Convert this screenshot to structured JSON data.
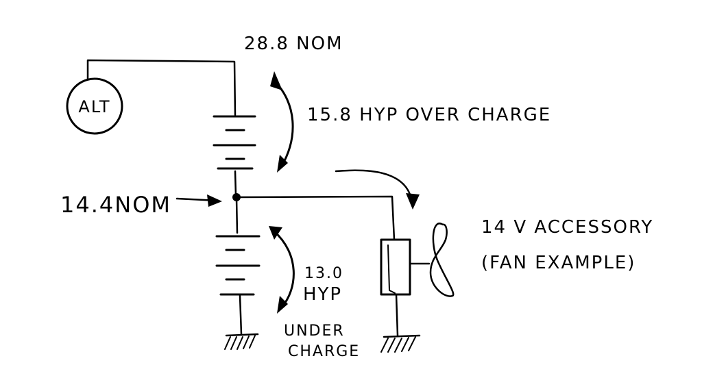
{
  "labels": {
    "alt": "ALT",
    "top_voltage": "28.8 NOM",
    "mid_voltage": "14.4NOM",
    "over_charge": "15.8 HYP OVER CHARGE",
    "under_value": "13.0",
    "under_hyp": "HYP",
    "under_line1": "UNDER",
    "under_line2": "CHARGE",
    "accessory_line1": "14 V ACCESSORY",
    "accessory_line2": "(FAN EXAMPLE)"
  },
  "colors": {
    "ink": "#000000",
    "paper": "#ffffff"
  }
}
